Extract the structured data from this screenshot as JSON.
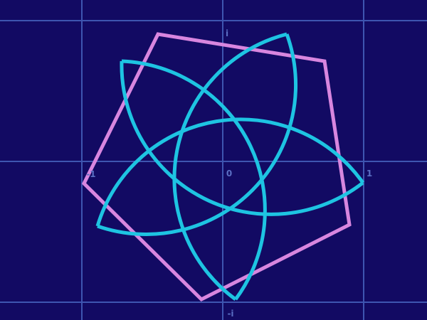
{
  "colors": {
    "background": "#120a63",
    "grid": "#3e55b0",
    "label": "#5a6ec3",
    "polygon": "#d886df",
    "curve": "#1ec4e2"
  },
  "labels": {
    "imag_pos": "i",
    "imag_neg": "-i",
    "real_neg": "-1",
    "real_pos": "1",
    "origin": "0"
  },
  "figure": {
    "polygon_sides": 5,
    "curve_lobes": 5,
    "curve_style": "ring of 5 circular arcs tangent to inner circle, pointed tips"
  }
}
